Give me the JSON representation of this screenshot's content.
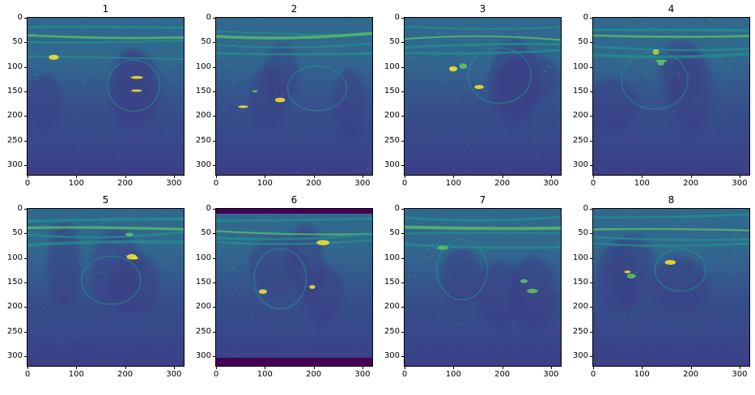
{
  "figure": {
    "panels": [
      {
        "title": "1",
        "band": "none"
      },
      {
        "title": "2",
        "band": "none"
      },
      {
        "title": "3",
        "band": "none"
      },
      {
        "title": "4",
        "band": "none"
      },
      {
        "title": "5",
        "band": "none"
      },
      {
        "title": "6",
        "band": "top-bottom"
      },
      {
        "title": "7",
        "band": "none"
      },
      {
        "title": "8",
        "band": "none"
      }
    ],
    "x_ticks": [
      "0",
      "100",
      "200",
      "300"
    ],
    "y_ticks": [
      "0",
      "50",
      "100",
      "150",
      "200",
      "250",
      "300"
    ],
    "axis_range": {
      "x": [
        0,
        320
      ],
      "y": [
        0,
        320
      ]
    },
    "colormap": "viridis",
    "colors": {
      "background": "#ffffff",
      "deep": "#440154",
      "dark": "#3b3f87",
      "mid": "#31688e",
      "teal": "#21918c",
      "green": "#5ec962",
      "yellow": "#fde725"
    }
  }
}
